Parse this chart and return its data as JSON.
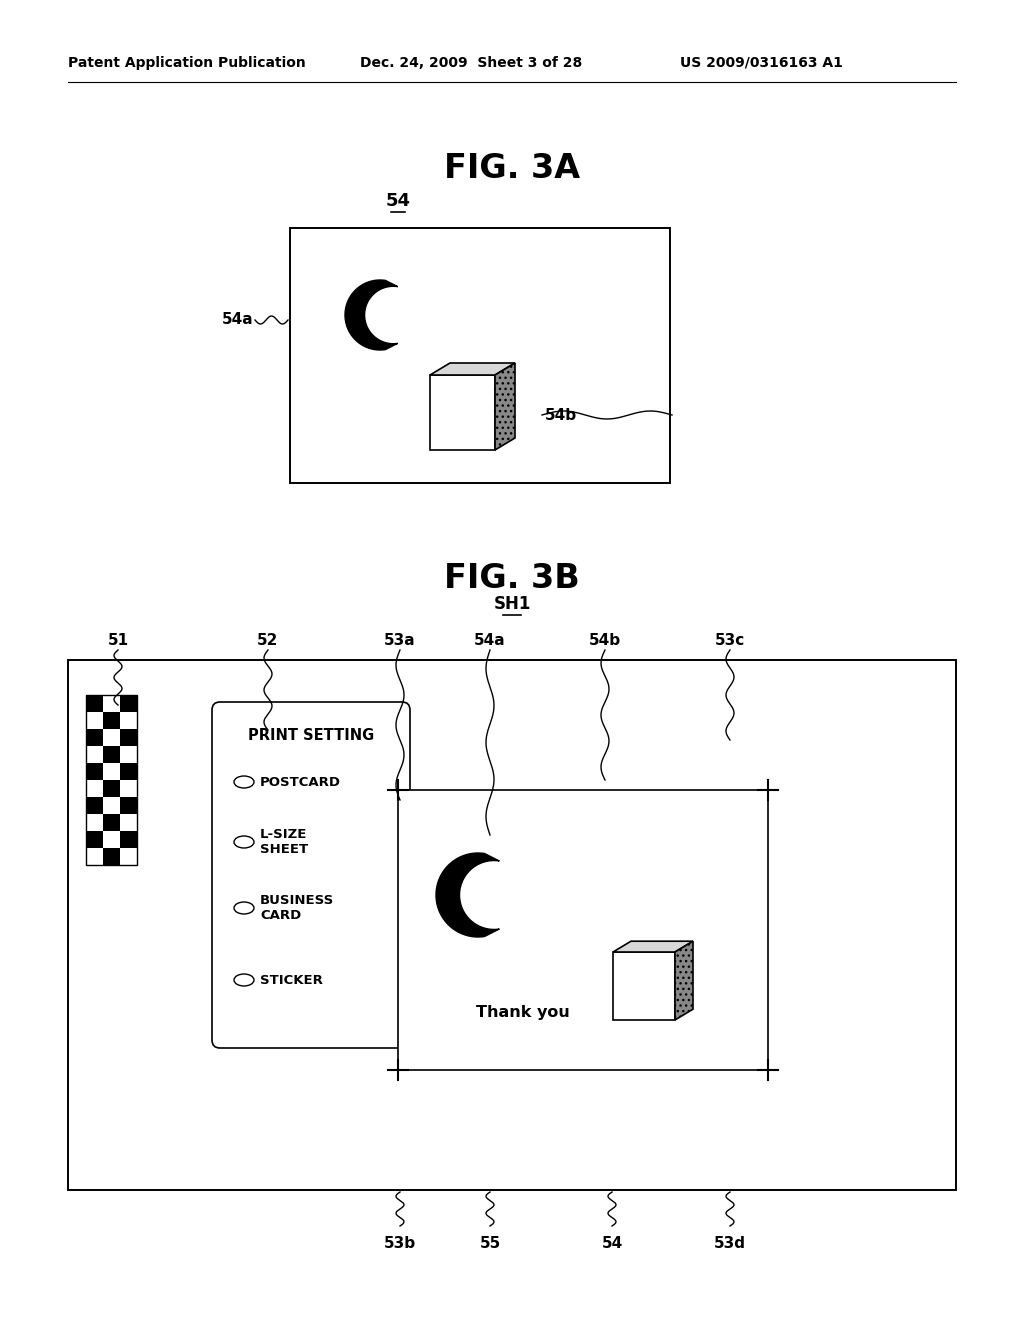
{
  "bg_color": "#ffffff",
  "header_left": "Patent Application Publication",
  "header_mid": "Dec. 24, 2009  Sheet 3 of 28",
  "header_right": "US 2009/0316163 A1",
  "fig3a_title": "FIG. 3A",
  "fig3b_title": "FIG. 3B",
  "label_54": "54",
  "label_sh1": "SH1",
  "label_54a": "54a",
  "label_54b": "54b",
  "fig3b_top_labels": [
    "51",
    "52",
    "53a",
    "54a",
    "54b",
    "53c"
  ],
  "fig3b_bot_labels": [
    "53b",
    "55",
    "54",
    "53d"
  ],
  "print_setting_title": "PRINT SETTING",
  "radio_options": [
    "POSTCARD",
    "L-SIZE\nSHEET",
    "BUSINESS\nCARD",
    "STICKER"
  ],
  "thank_you": "Thank you"
}
